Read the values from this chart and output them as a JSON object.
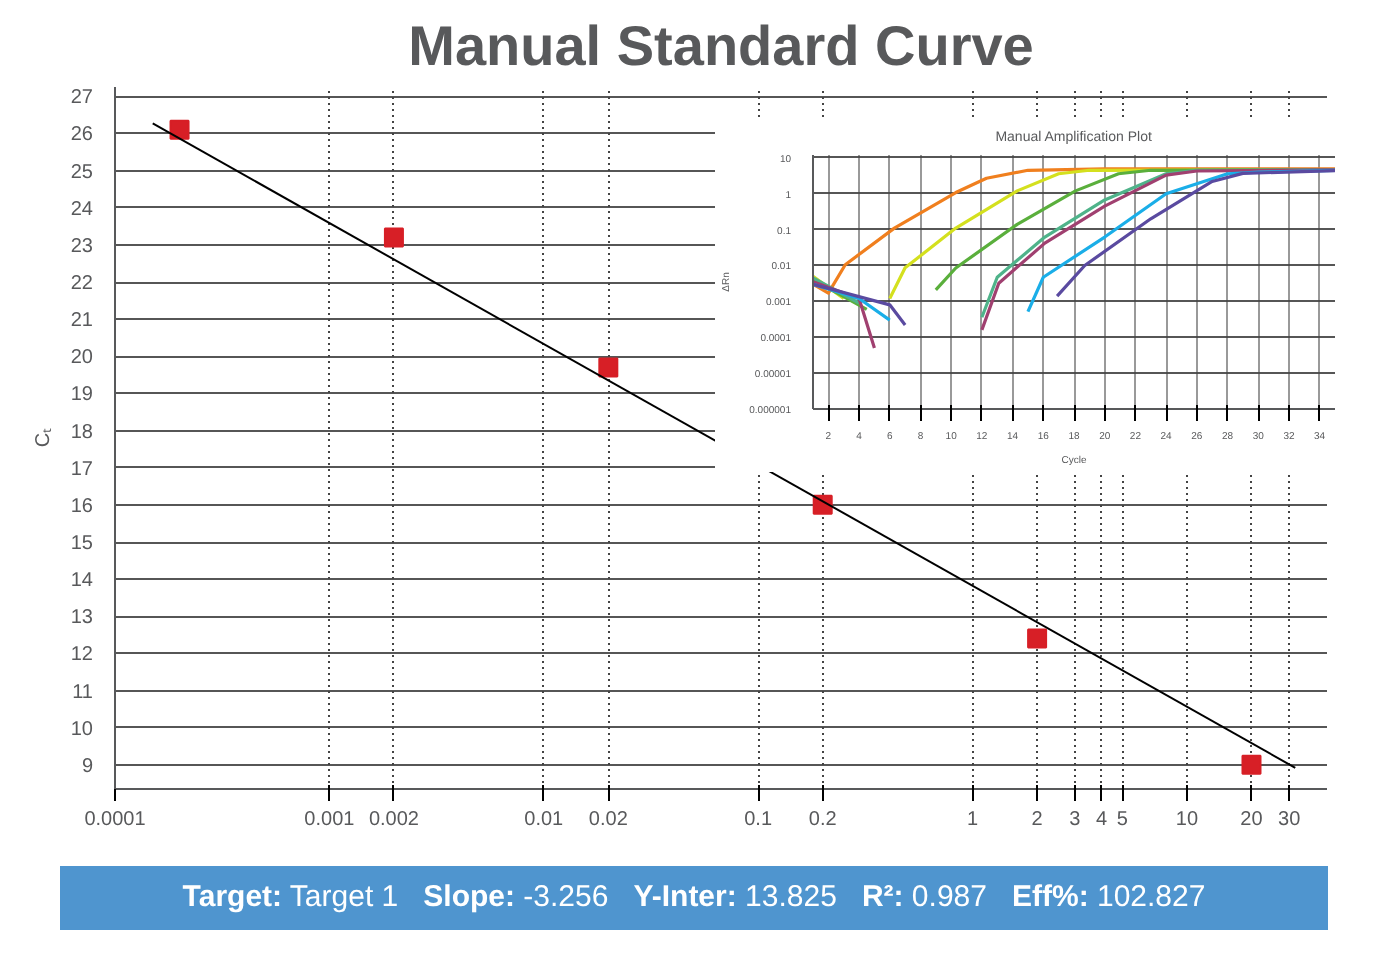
{
  "chart_data": [
    {
      "type": "scatter",
      "title": "Manual Standard Curve",
      "ylabel": "Cₜ",
      "log": "x",
      "grid": true,
      "x": [
        0.0002,
        0.002,
        0.02,
        0.2,
        2,
        20
      ],
      "series": [
        {
          "type": "scatter",
          "marker": "square",
          "color": "#d71f26",
          "values": [
            26.1,
            23.2,
            19.7,
            16.0,
            12.4,
            9.0
          ]
        },
        {
          "type": "line",
          "marker": "none",
          "color": "#000000",
          "x": [
            0.00015,
            32
          ],
          "values": [
            26.27,
            8.92
          ]
        }
      ],
      "xlim": [
        0.0001,
        45
      ],
      "ylim": [
        8.35,
        27.25
      ],
      "xticks": [
        0.0001,
        0.001,
        0.002,
        0.01,
        0.02,
        0.1,
        0.2,
        1,
        2,
        3,
        4,
        5,
        10,
        20,
        30
      ],
      "yticks": [
        9,
        10,
        11,
        12,
        13,
        14,
        15,
        16,
        17,
        18,
        19,
        20,
        21,
        22,
        23,
        24,
        25,
        26,
        27
      ],
      "annotations": [
        "Target: Target 1",
        "Slope: -3.256",
        "Y-Inter: 13.825",
        "R²: 0.987",
        "Eff%: 102.827"
      ]
    },
    {
      "type": "line",
      "title": "Manual Amplification Plot",
      "xlabel": "Cycle",
      "ylabel": "ΔRn",
      "log": "y",
      "grid": true,
      "marker": "none",
      "xlim": [
        1,
        35
      ],
      "ylim": [
        1e-06,
        12
      ],
      "xticks": [
        2,
        4,
        6,
        8,
        10,
        12,
        14,
        16,
        18,
        20,
        22,
        24,
        26,
        28,
        30,
        32,
        34
      ],
      "yticks": [
        {
          "value": 10,
          "label": "10"
        },
        {
          "value": 1,
          "label": "1"
        },
        {
          "value": 0.1,
          "label": "0.1"
        },
        {
          "value": 0.01,
          "label": "0.01"
        },
        {
          "value": 0.001,
          "label": "0.001"
        },
        {
          "value": 0.0001,
          "label": "0.0001"
        },
        {
          "value": 1e-05,
          "label": "0.00001"
        },
        {
          "value": 1e-06,
          "label": "0.000001"
        }
      ],
      "series": [
        {
          "color": "#f07f1e",
          "x": [
            1,
            2,
            3.1,
            6.3,
            10.3,
            12.3,
            15,
            20,
            35
          ],
          "values": [
            0.003,
            0.0017,
            0.0105,
            0.11,
            1.08,
            2.7,
            4.5,
            4.9,
            4.9
          ]
        },
        {
          "color": "#d4e01e",
          "x": [
            1,
            3,
            null,
            6,
            7,
            10.3,
            14.3,
            17,
            19,
            35
          ],
          "values": [
            0.005,
            0.0012,
            null,
            0.0012,
            0.0086,
            0.11,
            1.2,
            3.6,
            4.5,
            4.7
          ]
        },
        {
          "color": "#5aaf3c",
          "x": [
            1,
            4.5,
            null,
            9,
            10.3,
            14.3,
            18.1,
            20.9,
            23,
            35
          ],
          "values": [
            0.004,
            0.0006,
            null,
            0.0021,
            0.0085,
            0.14,
            1.2,
            3.6,
            4.5,
            4.7
          ]
        },
        {
          "color": "#4fb38a",
          "x": [
            1,
            4,
            null,
            12,
            13,
            16.1,
            20,
            24,
            26,
            35
          ],
          "values": [
            0.0045,
            0.0009,
            null,
            0.00036,
            0.0047,
            0.062,
            0.67,
            3.6,
            4.5,
            4.6
          ]
        },
        {
          "color": "#a04070",
          "x": [
            1,
            4,
            5,
            null,
            12,
            13.1,
            16.1,
            20,
            24,
            26,
            35
          ],
          "values": [
            0.0035,
            0.0012,
            5e-05,
            null,
            0.00016,
            0.0032,
            0.042,
            0.45,
            3.3,
            4.3,
            4.6
          ]
        },
        {
          "color": "#1aaee8",
          "x": [
            1,
            4,
            6,
            null,
            15,
            16,
            20,
            24,
            28,
            30,
            35
          ],
          "values": [
            0.003,
            0.0012,
            0.0003,
            null,
            0.00052,
            0.0047,
            0.062,
            1.0,
            3.6,
            4.0,
            4.5
          ]
        },
        {
          "color": "#5a4aa0",
          "x": [
            1,
            6,
            7,
            null,
            16.9,
            18.7,
            23,
            27,
            29,
            35
          ],
          "values": [
            0.003,
            0.0008,
            0.00022,
            null,
            0.0014,
            0.01,
            0.2,
            2.2,
            3.7,
            4.4
          ]
        }
      ]
    }
  ]
}
